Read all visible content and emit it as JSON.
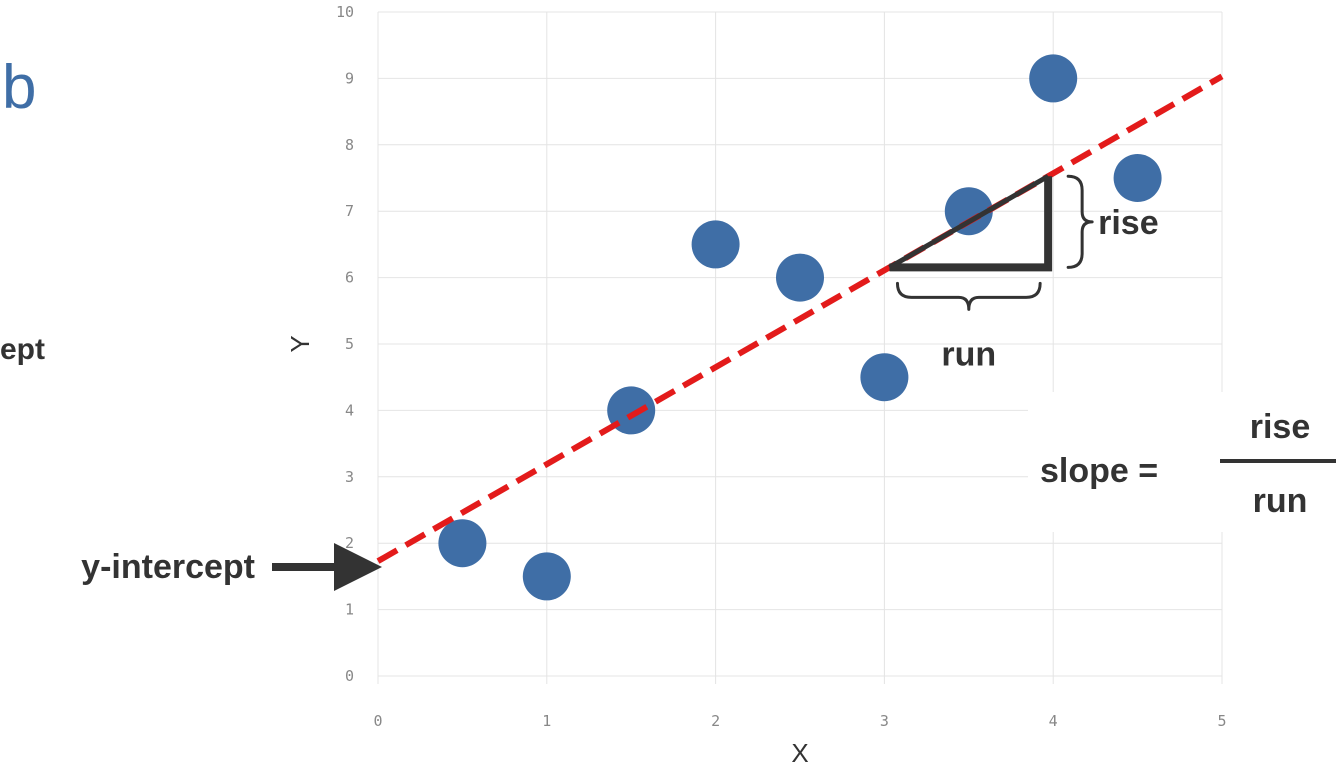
{
  "page": {
    "left_title_fragment": "b",
    "left_label_fragment": "ept"
  },
  "chart_data": {
    "type": "scatter",
    "xlabel": "X",
    "ylabel": "Y",
    "xlim": [
      0,
      5
    ],
    "ylim": [
      0,
      10
    ],
    "x_ticks": [
      "0",
      "1",
      "2",
      "3",
      "4",
      "5"
    ],
    "y_ticks": [
      "0",
      "1",
      "2",
      "3",
      "4",
      "5",
      "6",
      "7",
      "8",
      "9",
      "10"
    ],
    "grid": true,
    "points": [
      {
        "x": 0.5,
        "y": 2.0
      },
      {
        "x": 1.0,
        "y": 1.5
      },
      {
        "x": 1.5,
        "y": 4.0
      },
      {
        "x": 2.0,
        "y": 6.5
      },
      {
        "x": 2.5,
        "y": 6.0
      },
      {
        "x": 3.0,
        "y": 4.5
      },
      {
        "x": 3.5,
        "y": 7.0
      },
      {
        "x": 4.0,
        "y": 9.0
      },
      {
        "x": 4.5,
        "y": 7.5
      }
    ],
    "point_color": "#3f6ea6",
    "trend_line": {
      "intercept": 1.73,
      "slope": 1.46,
      "color": "#e31b1b",
      "style": "dashed"
    },
    "slope_triangle": {
      "x_start": 3.03,
      "x_end": 3.97
    },
    "annotations": {
      "y_intercept": "y-intercept",
      "rise": "rise",
      "run": "run",
      "slope_prefix": "slope =",
      "slope_numerator": "rise",
      "slope_denominator": "run"
    }
  }
}
